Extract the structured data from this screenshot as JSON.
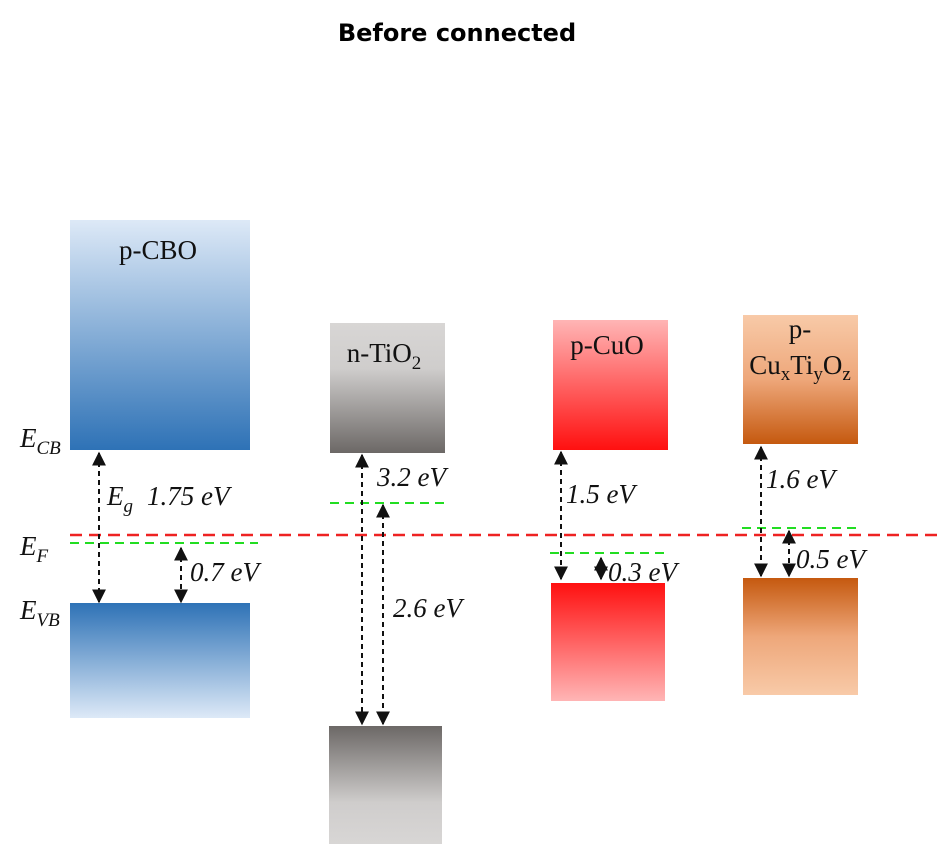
{
  "title": "Before connected",
  "levels": {
    "cb": [
      "E",
      "CB"
    ],
    "f": [
      "E",
      "F"
    ],
    "vb": [
      "E",
      "VB"
    ]
  },
  "materials": [
    {
      "label": [
        "p-CBO"
      ],
      "gap_symbol": [
        "E",
        "g"
      ],
      "band_gap": "1.75 eV",
      "fermi_offset": "0.7 eV"
    },
    {
      "label": [
        "n-TiO",
        "2"
      ],
      "band_gap": "3.2 eV",
      "fermi_offset": "2.6 eV"
    },
    {
      "label": [
        "p-CuO"
      ],
      "band_gap": "1.5 eV",
      "fermi_offset": "0.3 eV"
    },
    {
      "label": [
        "p-",
        "Cu",
        "x",
        "Ti",
        "y",
        "O",
        "z"
      ],
      "band_gap": "1.6 eV",
      "fermi_offset": "0.5 eV"
    }
  ]
}
